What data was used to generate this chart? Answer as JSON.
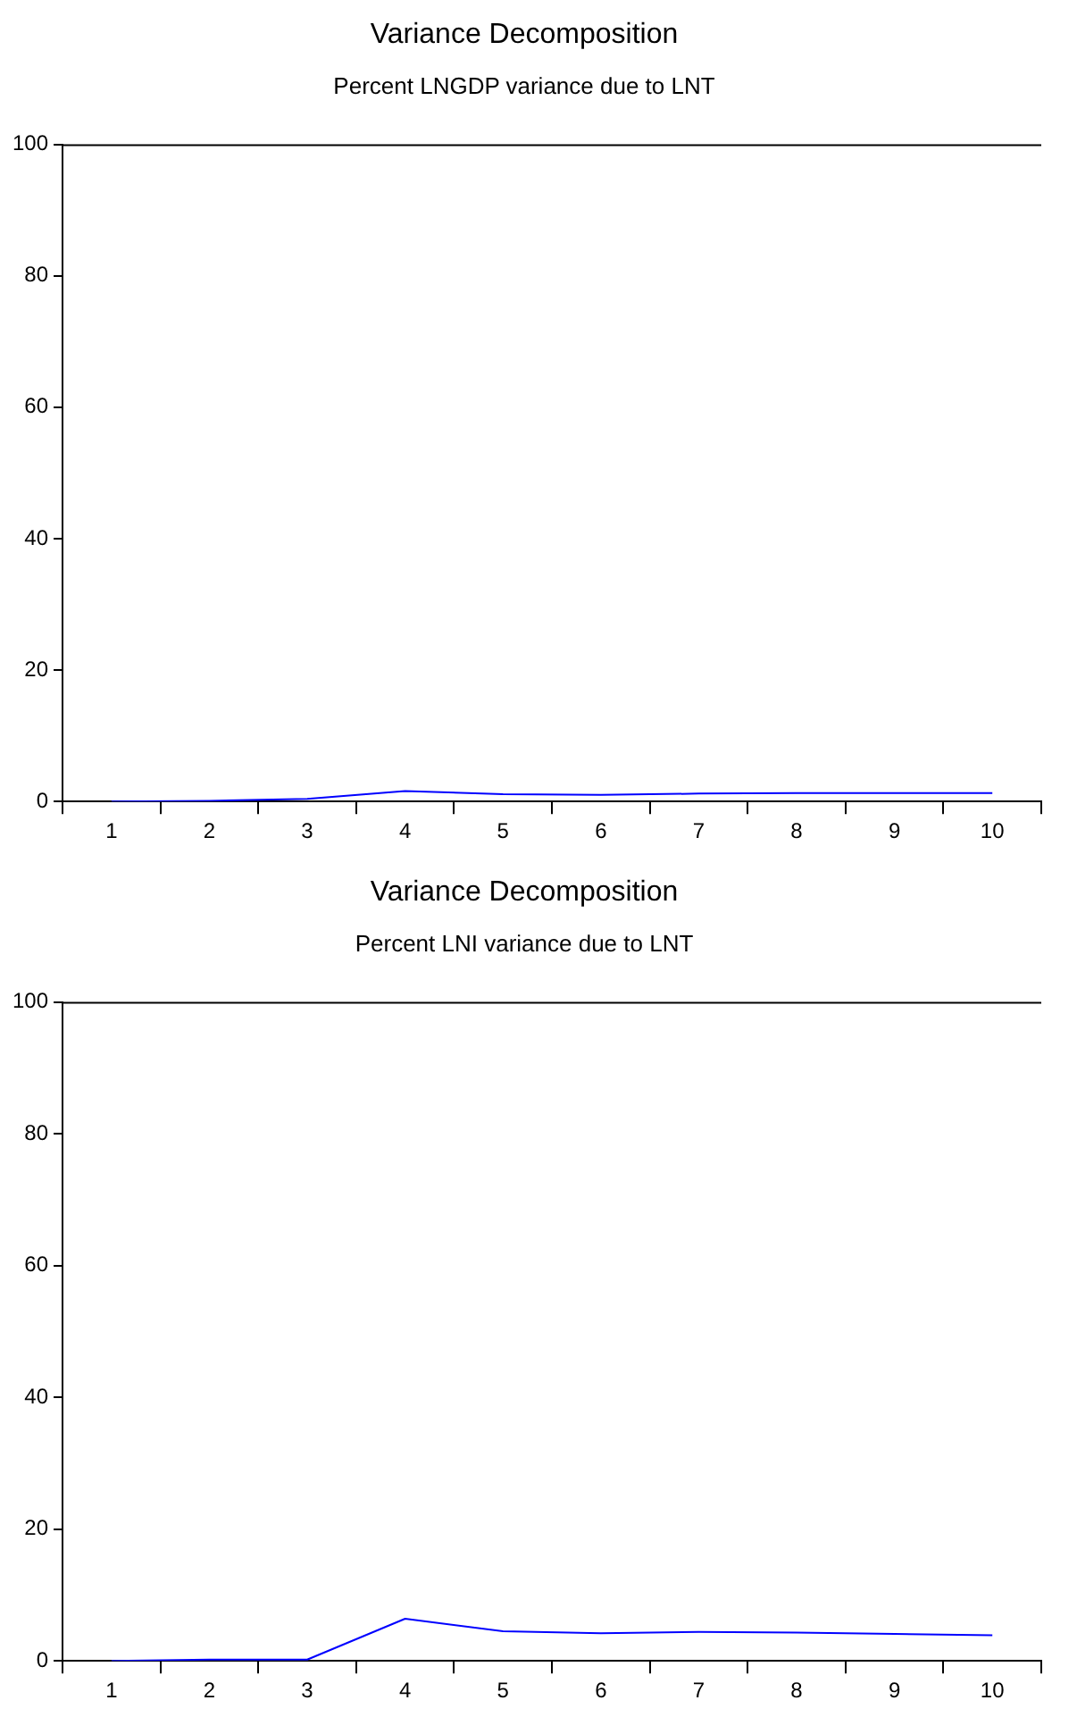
{
  "chart_data": [
    {
      "type": "line",
      "title": "Variance Decomposition",
      "subtitle": "Percent LNGDP variance due to LNT",
      "categories": [
        "1",
        "2",
        "3",
        "4",
        "5",
        "6",
        "7",
        "8",
        "9",
        "10"
      ],
      "series": [
        {
          "color": "#0000ff",
          "values": [
            0,
            0.1,
            0.4,
            1.6,
            1.1,
            1.0,
            1.2,
            1.3,
            1.3,
            1.3
          ]
        }
      ],
      "ylim": [
        0,
        100
      ],
      "yticks": [
        0,
        20,
        40,
        60,
        80,
        100
      ],
      "grid": false,
      "legend": false,
      "marker": "none",
      "line_style": "solid"
    },
    {
      "type": "line",
      "title": "Variance Decomposition",
      "subtitle": "Percent LNI variance due to LNT",
      "categories": [
        "1",
        "2",
        "3",
        "4",
        "5",
        "6",
        "7",
        "8",
        "9",
        "10"
      ],
      "series": [
        {
          "color": "#0000ff",
          "values": [
            0,
            0.2,
            0.2,
            6.4,
            4.5,
            4.2,
            4.4,
            4.3,
            4.1,
            3.9
          ]
        }
      ],
      "ylim": [
        0,
        100
      ],
      "yticks": [
        0,
        20,
        40,
        60,
        80,
        100
      ],
      "grid": false,
      "legend": false,
      "marker": "none",
      "line_style": "solid"
    }
  ]
}
